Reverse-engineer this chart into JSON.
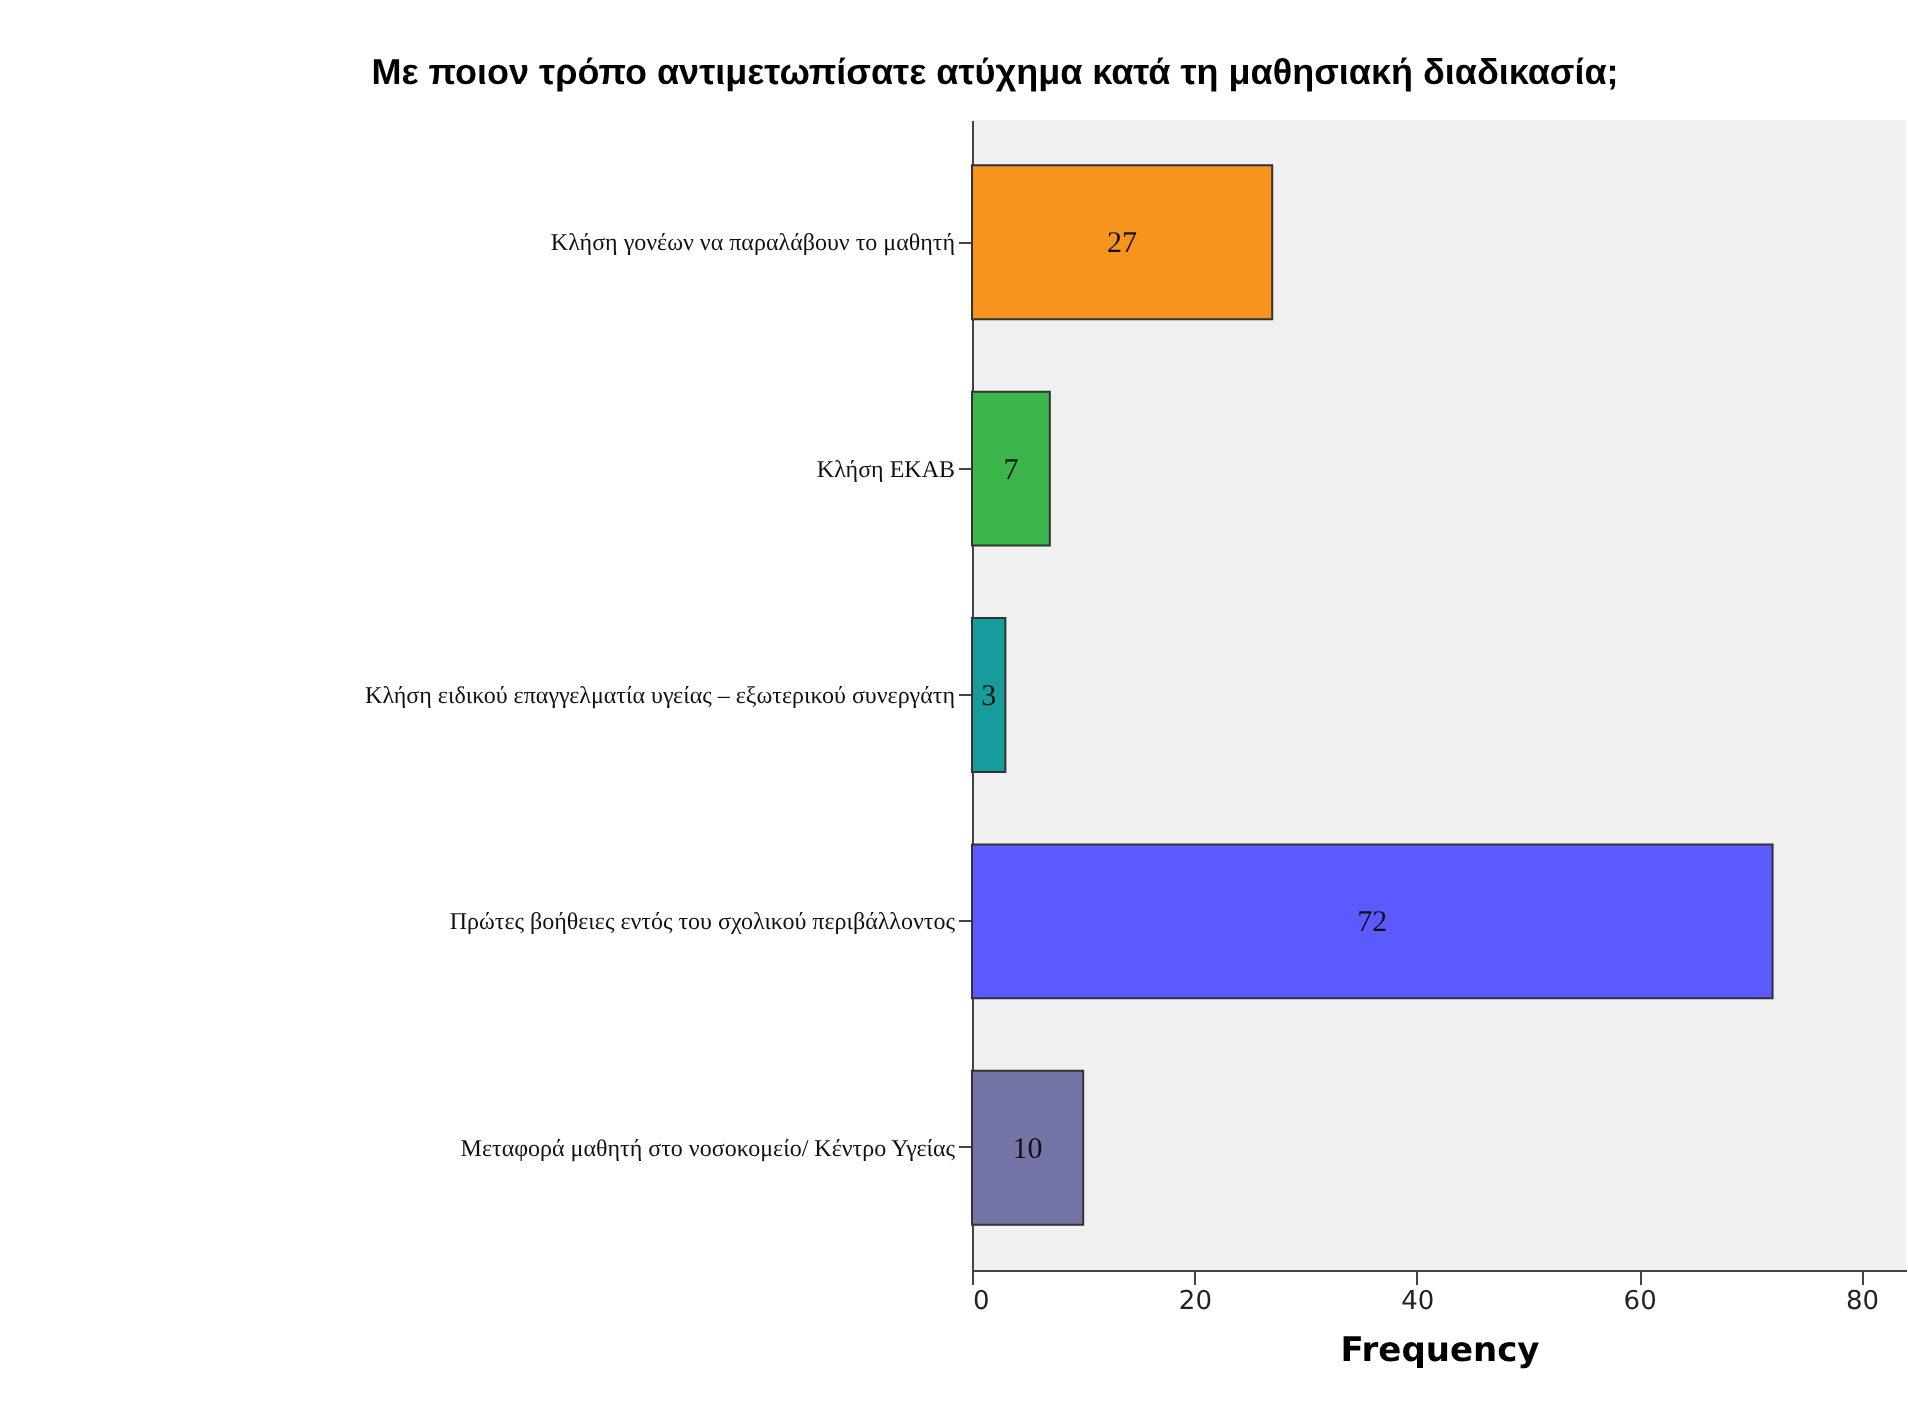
{
  "chart_data": {
    "type": "bar",
    "orientation": "horizontal",
    "title": "Με ποιον τρόπο αντιμετωπίσατε ατύχημα κατά τη μαθησιακή διαδικασία;",
    "xlabel": "Frequency",
    "categories": [
      "Κλήση γονέων να παραλάβουν το μαθητή",
      "Κλήση ΕΚΑΒ",
      "Κλήση ειδικού επαγγελματία υγείας – εξωτερικού συνεργάτη",
      "Πρώτες βοήθειες εντός του σχολικού περιβάλλοντος",
      "Μεταφορά μαθητή στο νοσοκομείο/ Κέντρο Υγείας"
    ],
    "values": [
      27,
      7,
      3,
      72,
      10
    ],
    "colors": [
      "#f7941d",
      "#3cb54a",
      "#179c9c",
      "#5a5aff",
      "#7474a6"
    ],
    "xlim": [
      0,
      84
    ],
    "xticks": [
      0,
      20,
      40,
      60,
      80
    ],
    "data_labels": true,
    "grid": false
  }
}
